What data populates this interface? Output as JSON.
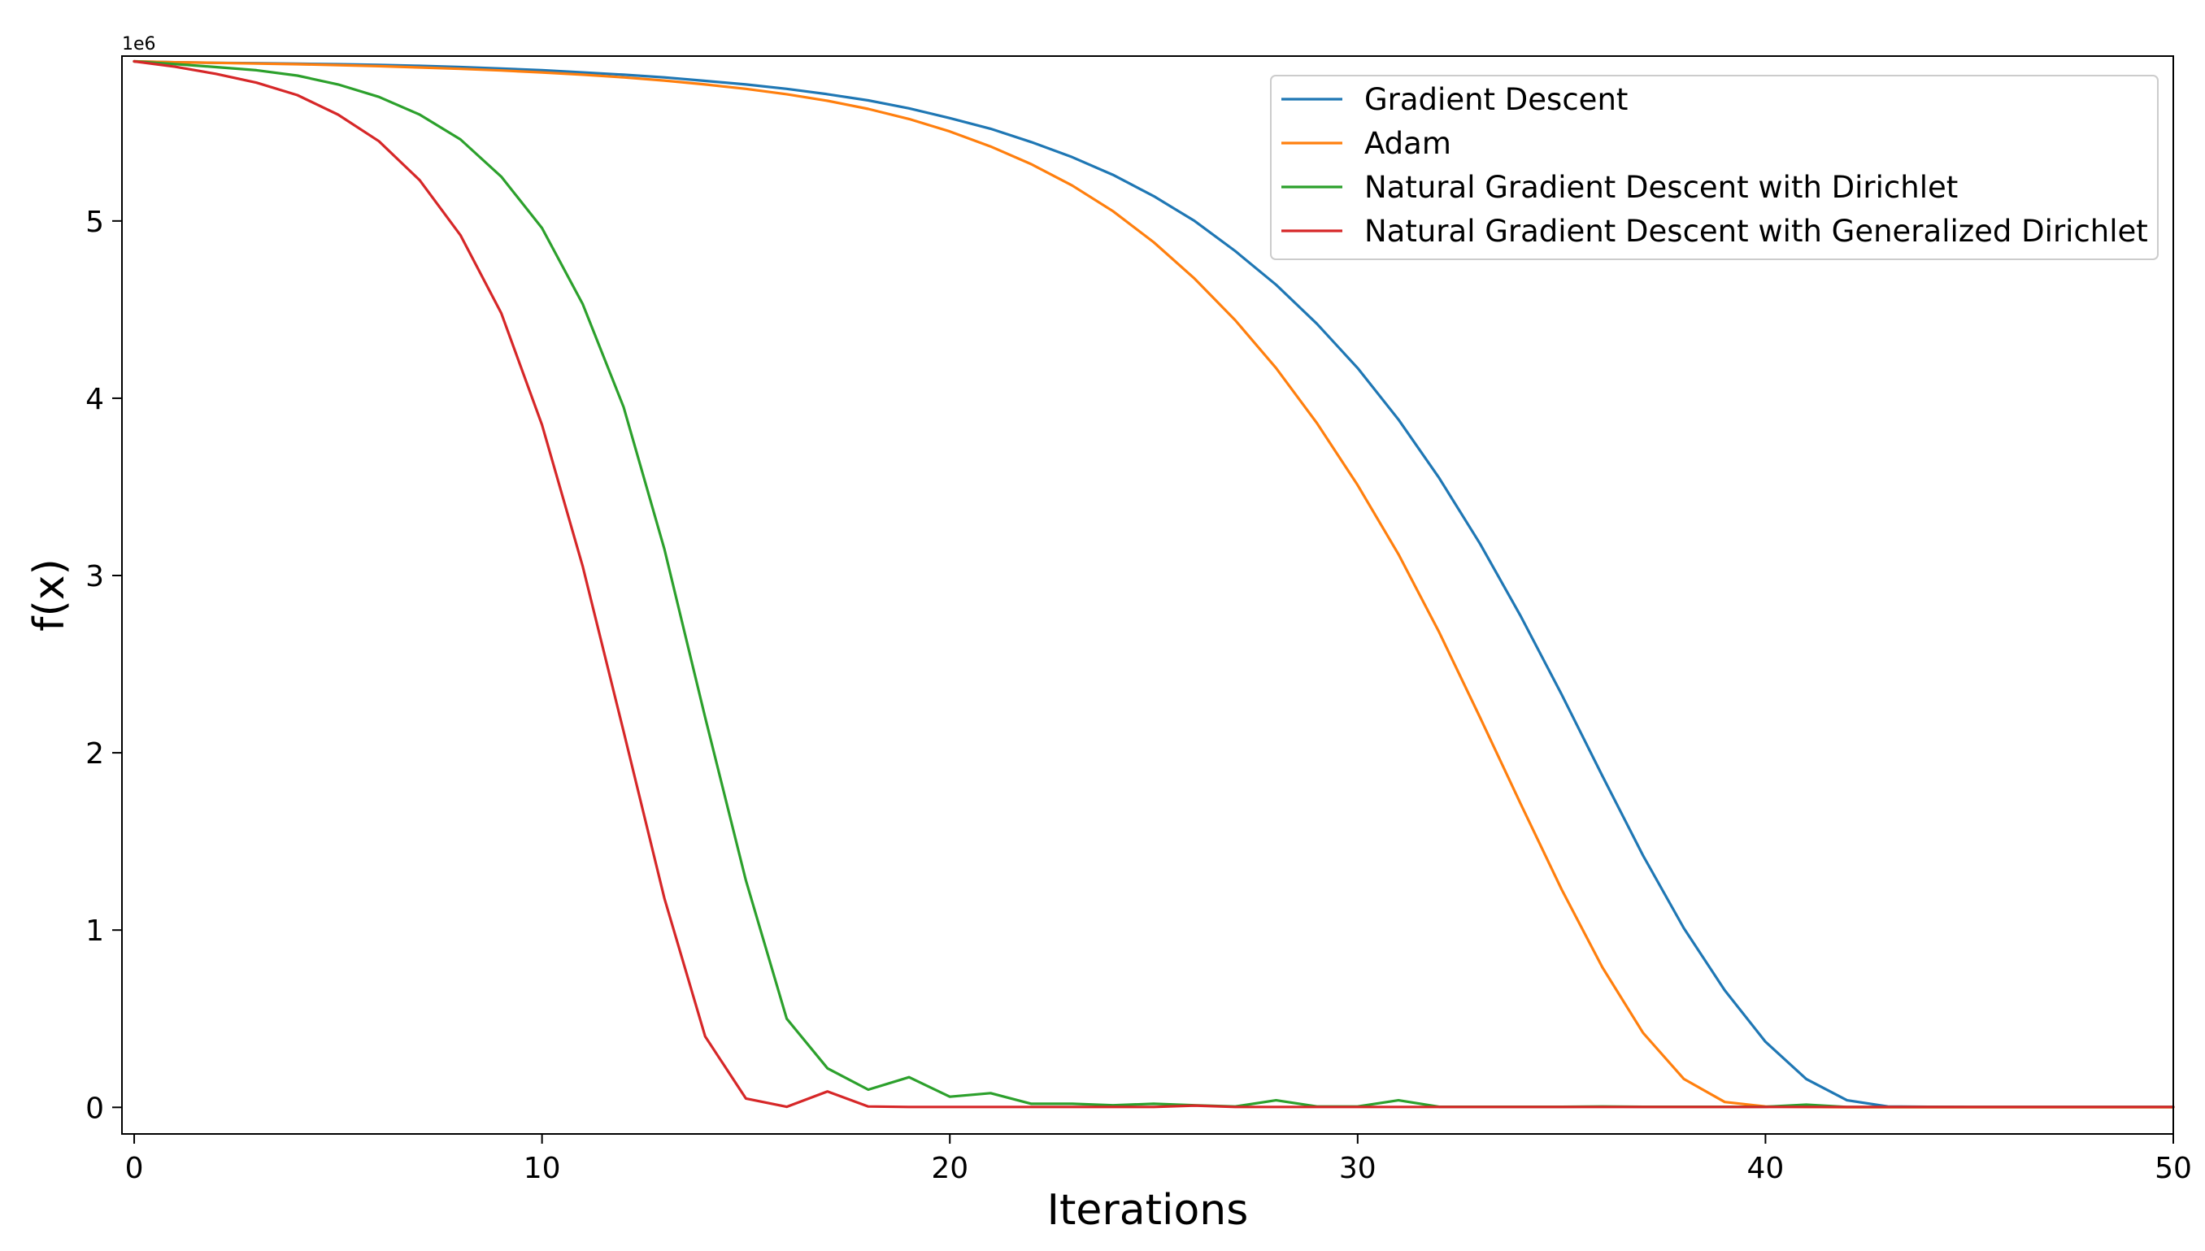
{
  "chart_data": {
    "type": "line",
    "xlabel": "Iterations",
    "ylabel": "f(x)",
    "y_offset_label": "1e6",
    "xlim": [
      -0.3,
      50
    ],
    "ylim": [
      -0.15,
      5.93
    ],
    "y_multiplier": 1000000,
    "xticks": [
      0,
      10,
      20,
      30,
      40,
      50
    ],
    "yticks": [
      0,
      1,
      2,
      3,
      4,
      5
    ],
    "grid": false,
    "legend_position": "top-right",
    "series": [
      {
        "name": "Gradient Descent",
        "color": "#1f77b4",
        "x": [
          0,
          1,
          2,
          3,
          4,
          5,
          6,
          7,
          8,
          9,
          10,
          11,
          12,
          13,
          14,
          15,
          16,
          17,
          18,
          19,
          20,
          21,
          22,
          23,
          24,
          25,
          26,
          27,
          28,
          29,
          30,
          31,
          32,
          33,
          34,
          35,
          36,
          37,
          38,
          39,
          40,
          41,
          42,
          43,
          44,
          45,
          46,
          47,
          48,
          49,
          50
        ],
        "y": [
          5.9,
          5.895,
          5.892,
          5.89,
          5.887,
          5.884,
          5.88,
          5.875,
          5.868,
          5.86,
          5.85,
          5.838,
          5.825,
          5.81,
          5.79,
          5.77,
          5.745,
          5.715,
          5.68,
          5.635,
          5.58,
          5.52,
          5.445,
          5.36,
          5.26,
          5.14,
          5.0,
          4.83,
          4.64,
          4.42,
          4.17,
          3.88,
          3.55,
          3.18,
          2.77,
          2.33,
          1.87,
          1.42,
          1.01,
          0.66,
          0.37,
          0.16,
          0.04,
          0.005,
          0.003,
          0.002,
          0.002,
          0.002,
          0.002,
          0.002,
          0.002
        ]
      },
      {
        "name": "Adam",
        "color": "#ff7f0e",
        "x": [
          0,
          1,
          2,
          3,
          4,
          5,
          6,
          7,
          8,
          9,
          10,
          11,
          12,
          13,
          14,
          15,
          16,
          17,
          18,
          19,
          20,
          21,
          22,
          23,
          24,
          25,
          26,
          27,
          28,
          29,
          30,
          31,
          32,
          33,
          34,
          35,
          36,
          37,
          38,
          39,
          40,
          41,
          42,
          43,
          44,
          45,
          46,
          47,
          48,
          49,
          50
        ],
        "y": [
          5.9,
          5.895,
          5.892,
          5.888,
          5.884,
          5.879,
          5.873,
          5.866,
          5.858,
          5.849,
          5.838,
          5.825,
          5.81,
          5.792,
          5.77,
          5.745,
          5.715,
          5.678,
          5.632,
          5.575,
          5.505,
          5.42,
          5.32,
          5.2,
          5.055,
          4.88,
          4.675,
          4.44,
          4.17,
          3.86,
          3.51,
          3.12,
          2.68,
          2.2,
          1.71,
          1.23,
          0.79,
          0.42,
          0.16,
          0.03,
          0.005,
          0.002,
          0.001,
          0.001,
          0.001,
          0.001,
          0.001,
          0.001,
          0.001,
          0.001,
          0.001
        ]
      },
      {
        "name": "Natural Gradient Descent with Dirichlet",
        "color": "#2ca02c",
        "x": [
          0,
          1,
          2,
          3,
          4,
          5,
          6,
          7,
          8,
          9,
          10,
          11,
          12,
          13,
          14,
          15,
          16,
          17,
          18,
          19,
          20,
          21,
          22,
          23,
          24,
          25,
          26,
          27,
          28,
          29,
          30,
          31,
          32,
          33,
          34,
          35,
          36,
          37,
          38,
          39,
          40,
          41,
          42,
          43,
          44,
          45,
          46,
          47,
          48,
          49,
          50
        ],
        "y": [
          5.9,
          5.885,
          5.868,
          5.85,
          5.82,
          5.77,
          5.7,
          5.6,
          5.46,
          5.25,
          4.96,
          4.53,
          3.95,
          3.15,
          2.2,
          1.28,
          0.5,
          0.22,
          0.1,
          0.17,
          0.06,
          0.08,
          0.02,
          0.02,
          0.012,
          0.02,
          0.012,
          0.005,
          0.04,
          0.005,
          0.005,
          0.04,
          0.003,
          0.003,
          0.003,
          0.003,
          0.005,
          0.003,
          0.003,
          0.003,
          0.003,
          0.015,
          0.002,
          0.002,
          0.002,
          0.002,
          0.002,
          0.002,
          0.002,
          0.002,
          0.002
        ]
      },
      {
        "name": "Natural Gradient Descent with Generalized Dirichlet",
        "color": "#d62728",
        "x": [
          0,
          1,
          2,
          3,
          4,
          5,
          6,
          7,
          8,
          9,
          10,
          11,
          12,
          13,
          14,
          15,
          16,
          17,
          18,
          19,
          20,
          21,
          22,
          23,
          24,
          25,
          26,
          27,
          28,
          29,
          30,
          31,
          32,
          33,
          34,
          35,
          36,
          37,
          38,
          39,
          40,
          41,
          42,
          43,
          44,
          45,
          46,
          47,
          48,
          49,
          50
        ],
        "y": [
          5.9,
          5.87,
          5.83,
          5.78,
          5.71,
          5.6,
          5.45,
          5.23,
          4.92,
          4.48,
          3.85,
          3.05,
          2.12,
          1.18,
          0.4,
          0.05,
          0.003,
          0.09,
          0.005,
          0.002,
          0.002,
          0.002,
          0.002,
          0.002,
          0.002,
          0.002,
          0.01,
          0.002,
          0.002,
          0.002,
          0.002,
          0.002,
          0.002,
          0.002,
          0.002,
          0.002,
          0.002,
          0.002,
          0.002,
          0.002,
          0.002,
          0.002,
          0.002,
          0.002,
          0.002,
          0.002,
          0.002,
          0.002,
          0.002,
          0.002,
          0.002
        ]
      }
    ]
  }
}
